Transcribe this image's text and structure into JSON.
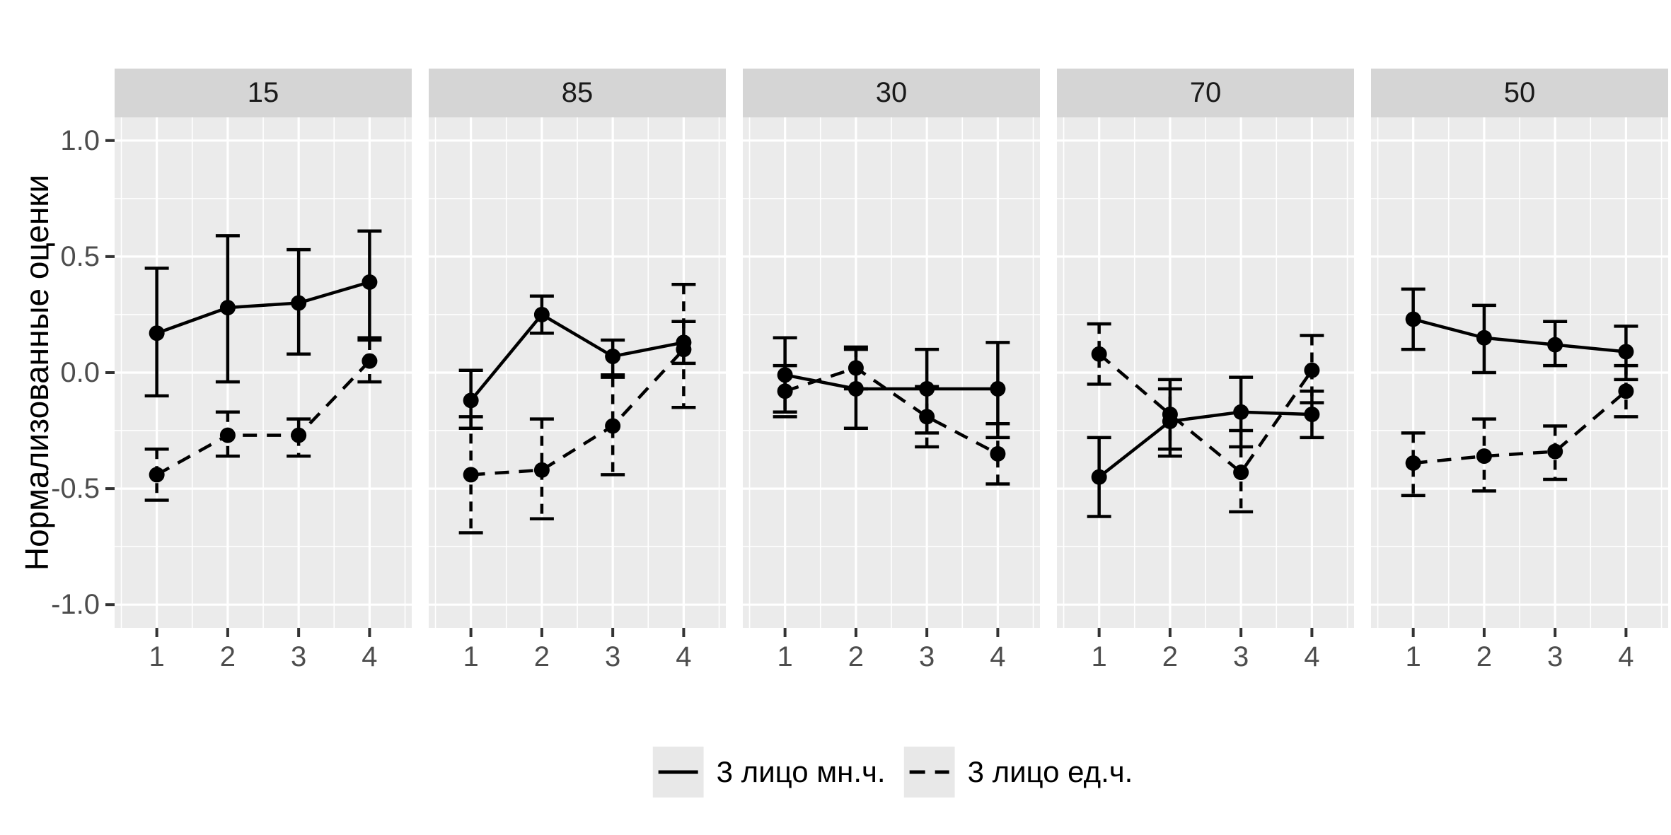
{
  "chart_data": {
    "type": "line",
    "description": "Faceted point-line chart with error bars, ggplot2 gray theme",
    "ylabel": "Нормализованные оценки",
    "x": [
      1,
      2,
      3,
      4
    ],
    "x_tick_labels": [
      "1",
      "2",
      "3",
      "4"
    ],
    "y_ticks": [
      {
        "value": 1.0,
        "label": "1.0"
      },
      {
        "value": 0.5,
        "label": "0.5"
      },
      {
        "value": 0.0,
        "label": "0.0"
      },
      {
        "value": -0.5,
        "label": "-0.5"
      },
      {
        "value": -1.0,
        "label": "-1.0"
      }
    ],
    "ylim": [
      -1.1,
      1.1
    ],
    "grid": {
      "major_every": 0.5,
      "minor_every": 0.25,
      "color": "#ffffff"
    },
    "legend_position": "bottom",
    "series_meta": [
      {
        "name": "3 лицо мн.ч.",
        "linetype": "solid"
      },
      {
        "name": "3 лицо ед.ч.",
        "linetype": "dashed"
      }
    ],
    "facets": [
      {
        "label": "15",
        "solid": {
          "y": [
            0.17,
            0.28,
            0.3,
            0.39
          ],
          "lo": [
            -0.1,
            -0.04,
            0.08,
            0.15
          ],
          "hi": [
            0.45,
            0.59,
            0.53,
            0.61
          ]
        },
        "dashed": {
          "y": [
            -0.44,
            -0.27,
            -0.27,
            0.05
          ],
          "lo": [
            -0.55,
            -0.36,
            -0.36,
            -0.04
          ],
          "hi": [
            -0.33,
            -0.17,
            -0.2,
            0.14
          ]
        }
      },
      {
        "label": "85",
        "solid": {
          "y": [
            -0.12,
            0.25,
            0.07,
            0.13
          ],
          "lo": [
            -0.24,
            0.17,
            -0.01,
            0.04
          ],
          "hi": [
            0.01,
            0.33,
            0.14,
            0.22
          ]
        },
        "dashed": {
          "y": [
            -0.44,
            -0.42,
            -0.23,
            0.1
          ],
          "lo": [
            -0.69,
            -0.63,
            -0.44,
            -0.15
          ],
          "hi": [
            -0.19,
            -0.2,
            -0.02,
            0.38
          ]
        }
      },
      {
        "label": "30",
        "solid": {
          "y": [
            -0.01,
            -0.07,
            -0.07,
            -0.07
          ],
          "lo": [
            -0.17,
            -0.24,
            -0.26,
            -0.28
          ],
          "hi": [
            0.15,
            0.1,
            0.1,
            0.13
          ]
        },
        "dashed": {
          "y": [
            -0.08,
            0.02,
            -0.19,
            -0.35
          ],
          "lo": [
            -0.19,
            -0.07,
            -0.32,
            -0.48
          ],
          "hi": [
            0.03,
            0.11,
            -0.06,
            -0.22
          ]
        }
      },
      {
        "label": "70",
        "solid": {
          "y": [
            -0.45,
            -0.21,
            -0.17,
            -0.18
          ],
          "lo": [
            -0.62,
            -0.36,
            -0.32,
            -0.28
          ],
          "hi": [
            -0.28,
            -0.07,
            -0.02,
            -0.08
          ]
        },
        "dashed": {
          "y": [
            0.08,
            -0.18,
            -0.43,
            0.01
          ],
          "lo": [
            -0.05,
            -0.33,
            -0.6,
            -0.13
          ],
          "hi": [
            0.21,
            -0.03,
            -0.25,
            0.16
          ]
        }
      },
      {
        "label": "50",
        "solid": {
          "y": [
            0.23,
            0.15,
            0.12,
            0.09
          ],
          "lo": [
            0.1,
            0.0,
            0.03,
            -0.03
          ],
          "hi": [
            0.36,
            0.29,
            0.22,
            0.2
          ]
        },
        "dashed": {
          "y": [
            -0.39,
            -0.36,
            -0.34,
            -0.08
          ],
          "lo": [
            -0.53,
            -0.51,
            -0.46,
            -0.19
          ],
          "hi": [
            -0.26,
            -0.2,
            -0.23,
            0.03
          ]
        }
      }
    ],
    "colors": {
      "panel_bg": "#ebebeb",
      "strip_bg": "#d5d5d5",
      "grid": "#ffffff",
      "axis_text": "#4d4d4d",
      "strip_text": "#1a1a1a",
      "series": "#000000",
      "legend_key_bg": "#e8e8e8",
      "page_bg": "#ffffff"
    }
  }
}
